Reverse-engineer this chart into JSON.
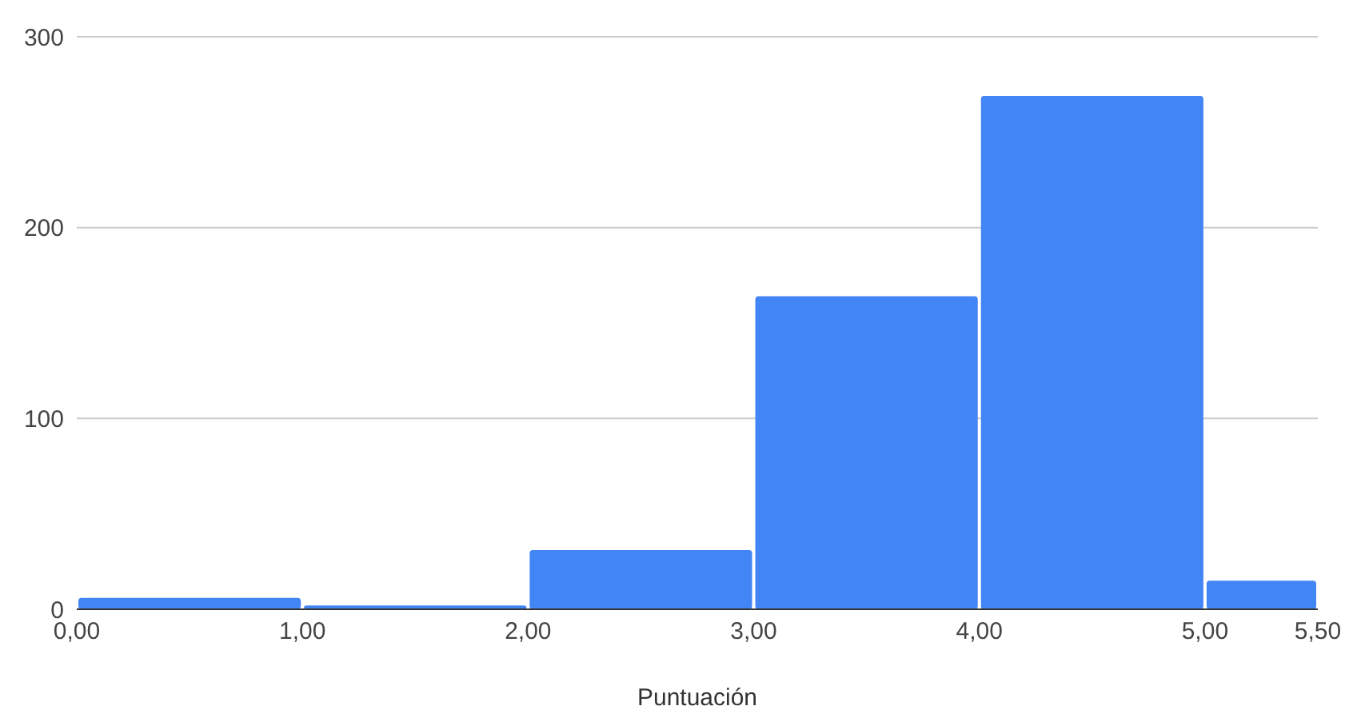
{
  "chart_data": {
    "type": "histogram",
    "xlabel": "Puntuación",
    "bins": [
      0,
      1,
      2,
      3,
      4,
      5,
      5.5
    ],
    "values": [
      6,
      2,
      31,
      164,
      269,
      15
    ],
    "color": "#4285f4",
    "xlim": [
      0,
      5.5
    ],
    "xticks": [
      {
        "value": 0,
        "label": "0,00"
      },
      {
        "value": 1,
        "label": "1,00"
      },
      {
        "value": 2,
        "label": "2,00"
      },
      {
        "value": 3,
        "label": "3,00"
      },
      {
        "value": 4,
        "label": "4,00"
      },
      {
        "value": 5,
        "label": "5,00"
      },
      {
        "value": 5.5,
        "label": "5,50"
      }
    ],
    "ylim": [
      0,
      300
    ],
    "yticks": [
      0,
      100,
      200,
      300
    ],
    "grid": "y"
  }
}
